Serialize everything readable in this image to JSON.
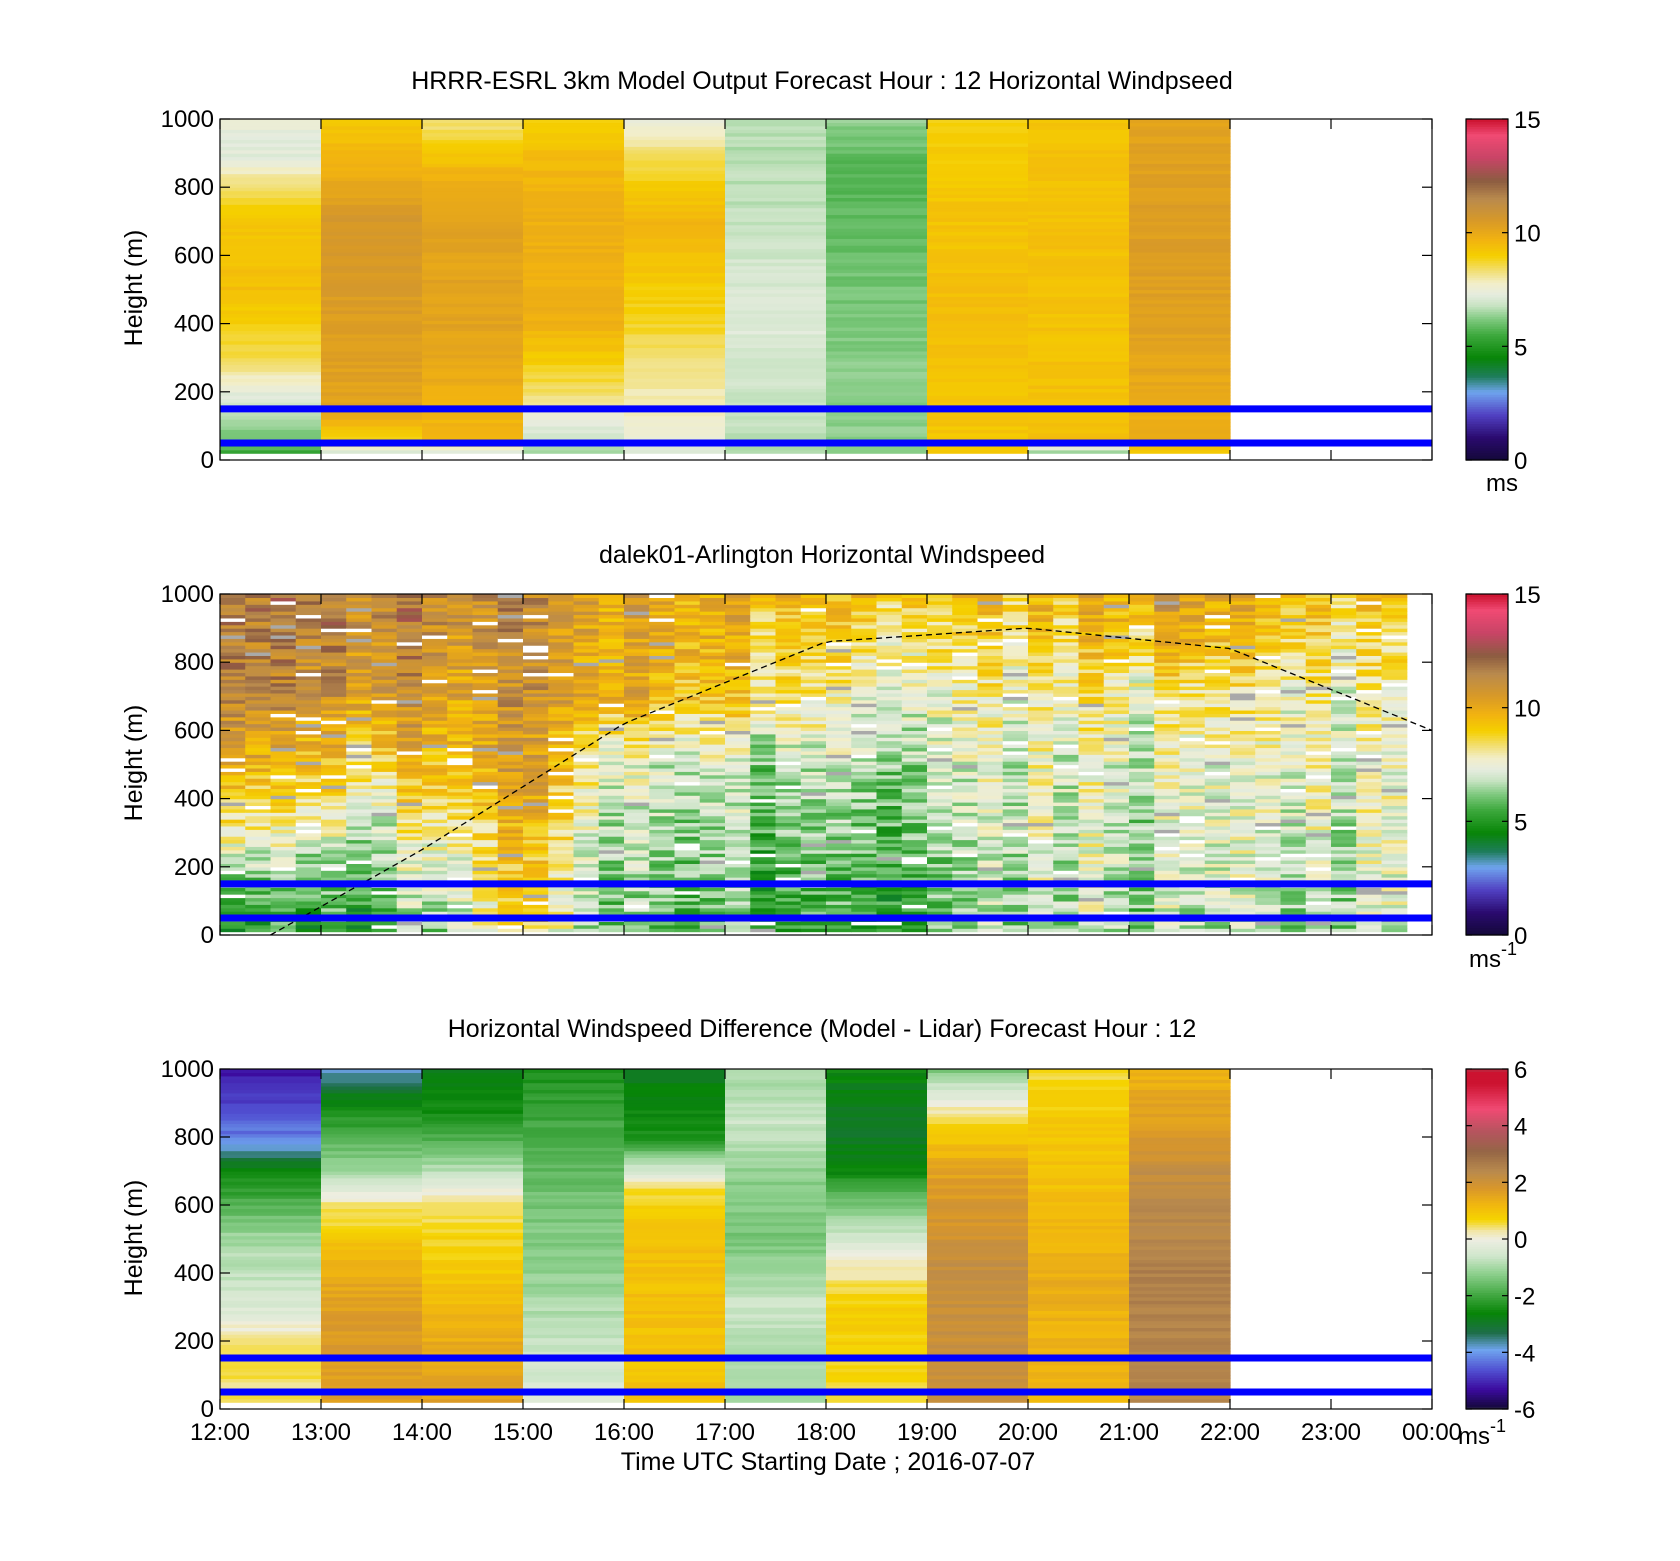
{
  "figure": {
    "xlabel": "Time UTC  Starting Date ; 2016-07-07",
    "x_tick_labels": [
      "12:00",
      "13:00",
      "14:00",
      "15:00",
      "16:00",
      "17:00",
      "18:00",
      "19:00",
      "20:00",
      "21:00",
      "22:00",
      "23:00",
      "00:00"
    ],
    "colors": {
      "reference_lines": "#0000ff",
      "boundary_layer_curve": "#000000",
      "axes": "#000000",
      "background": "#ffffff"
    }
  },
  "chart_data": [
    {
      "type": "heatmap",
      "title": "HRRR-ESRL 3km Model Output   Forecast Hour : 12 Horizontal Windpseed",
      "ylabel": "Height (m)",
      "ylim": [
        0,
        1000
      ],
      "y_ticks": [
        0,
        200,
        400,
        600,
        800,
        1000
      ],
      "xlim_hours_utc": [
        12,
        24
      ],
      "colorbar": {
        "range": [
          0,
          15
        ],
        "ticks": [
          0,
          5,
          10,
          15
        ],
        "unit": "ms"
      },
      "data_coverage_hours": [
        12,
        22
      ],
      "reference_lines_m": [
        150,
        50
      ],
      "columns_hourly_mean_speed_ms": [
        {
          "hour": "12:00",
          "speed_by_height": [
            [
              0,
              5.2
            ],
            [
              60,
              6.0
            ],
            [
              150,
              6.8
            ],
            [
              300,
              8.5
            ],
            [
              500,
              9.4
            ],
            [
              700,
              9.2
            ],
            [
              800,
              8.4
            ],
            [
              900,
              7.2
            ],
            [
              1000,
              7.4
            ]
          ]
        },
        {
          "hour": "13:00",
          "speed_by_height": [
            [
              0,
              5.5
            ],
            [
              60,
              9.0
            ],
            [
              150,
              10.2
            ],
            [
              400,
              10.4
            ],
            [
              700,
              10.6
            ],
            [
              850,
              9.8
            ],
            [
              1000,
              9.2
            ]
          ]
        },
        {
          "hour": "14:00",
          "speed_by_height": [
            [
              0,
              5.5
            ],
            [
              60,
              9.5
            ],
            [
              150,
              9.8
            ],
            [
              400,
              10.2
            ],
            [
              700,
              10.2
            ],
            [
              850,
              9.6
            ],
            [
              1000,
              8.2
            ]
          ]
        },
        {
          "hour": "15:00",
          "speed_by_height": [
            [
              0,
              6.2
            ],
            [
              100,
              7.2
            ],
            [
              200,
              8.4
            ],
            [
              400,
              9.8
            ],
            [
              700,
              9.8
            ],
            [
              850,
              9.6
            ],
            [
              1000,
              9.0
            ]
          ]
        },
        {
          "hour": "16:00",
          "speed_by_height": [
            [
              0,
              7.2
            ],
            [
              200,
              8.0
            ],
            [
              400,
              8.8
            ],
            [
              700,
              9.6
            ],
            [
              850,
              8.8
            ],
            [
              1000,
              7.4
            ]
          ]
        },
        {
          "hour": "17:00",
          "speed_by_height": [
            [
              0,
              6.6
            ],
            [
              400,
              7.2
            ],
            [
              700,
              6.8
            ],
            [
              1000,
              6.6
            ]
          ]
        },
        {
          "hour": "18:00",
          "speed_by_height": [
            [
              0,
              6.4
            ],
            [
              400,
              6.2
            ],
            [
              700,
              5.9
            ],
            [
              850,
              5.7
            ],
            [
              1000,
              6.4
            ]
          ]
        },
        {
          "hour": "19:00",
          "speed_by_height": [
            [
              0,
              9.2
            ],
            [
              400,
              9.4
            ],
            [
              700,
              9.3
            ],
            [
              1000,
              9.0
            ]
          ]
        },
        {
          "hour": "20:00",
          "speed_by_height": [
            [
              0,
              4.5
            ],
            [
              60,
              9.4
            ],
            [
              400,
              9.3
            ],
            [
              700,
              9.4
            ],
            [
              1000,
              9.3
            ]
          ]
        },
        {
          "hour": "21:00",
          "speed_by_height": [
            [
              0,
              9.0
            ],
            [
              60,
              9.8
            ],
            [
              400,
              10.3
            ],
            [
              700,
              10.4
            ],
            [
              1000,
              10.2
            ]
          ]
        }
      ]
    },
    {
      "type": "heatmap",
      "title": "dalek01-Arlington  Horizontal Windspeed",
      "ylabel": "Height (m)",
      "ylim": [
        0,
        1000
      ],
      "y_ticks": [
        0,
        200,
        400,
        600,
        800,
        1000
      ],
      "xlim_hours_utc": [
        12,
        24
      ],
      "colorbar": {
        "range": [
          0,
          15
        ],
        "ticks": [
          0,
          5,
          10,
          15
        ],
        "unit": "ms-1"
      },
      "data_coverage_hours": [
        12,
        23.75
      ],
      "reference_lines_m": [
        150,
        50
      ],
      "boundary_layer_height_curve": {
        "style": "dashed",
        "points_hour_height_m": [
          [
            12.5,
            0
          ],
          [
            14,
            250
          ],
          [
            16,
            620
          ],
          [
            18,
            860
          ],
          [
            20,
            900
          ],
          [
            22,
            840
          ],
          [
            24,
            600
          ]
        ]
      },
      "keyframes_mean_speed_ms": [
        {
          "hour": 12.0,
          "speed_by_height": [
            [
              0,
              5.0
            ],
            [
              150,
              6.2
            ],
            [
              300,
              8.2
            ],
            [
              500,
              10.2
            ],
            [
              700,
              11.4
            ],
            [
              1000,
              11.8
            ]
          ]
        },
        {
          "hour": 13.5,
          "speed_by_height": [
            [
              0,
              5.0
            ],
            [
              150,
              6.0
            ],
            [
              300,
              6.8
            ],
            [
              500,
              8.8
            ],
            [
              700,
              10.6
            ],
            [
              1000,
              11.6
            ]
          ]
        },
        {
          "hour": 15.0,
          "speed_by_height": [
            [
              0,
              8.2
            ],
            [
              150,
              8.6
            ],
            [
              300,
              9.2
            ],
            [
              500,
              10.2
            ],
            [
              700,
              10.4
            ],
            [
              1000,
              10.8
            ]
          ]
        },
        {
          "hour": 16.0,
          "speed_by_height": [
            [
              0,
              5.6
            ],
            [
              150,
              6.0
            ],
            [
              300,
              6.4
            ],
            [
              500,
              6.8
            ],
            [
              700,
              9.6
            ],
            [
              1000,
              9.8
            ]
          ]
        },
        {
          "hour": 17.5,
          "speed_by_height": [
            [
              0,
              5.4
            ],
            [
              150,
              5.8
            ],
            [
              300,
              6.2
            ],
            [
              500,
              6.8
            ],
            [
              700,
              8.6
            ],
            [
              1000,
              9.8
            ]
          ]
        },
        {
          "hour": 18.5,
          "speed_by_height": [
            [
              0,
              4.6
            ],
            [
              150,
              5.0
            ],
            [
              300,
              5.4
            ],
            [
              500,
              6.0
            ],
            [
              700,
              6.8
            ],
            [
              1000,
              8.6
            ]
          ]
        },
        {
          "hour": 20.0,
          "speed_by_height": [
            [
              0,
              6.6
            ],
            [
              150,
              7.0
            ],
            [
              300,
              7.2
            ],
            [
              500,
              7.4
            ],
            [
              700,
              7.8
            ],
            [
              1000,
              9.2
            ]
          ]
        },
        {
          "hour": 21.5,
          "speed_by_height": [
            [
              0,
              6.4
            ],
            [
              150,
              6.8
            ],
            [
              300,
              7.0
            ],
            [
              500,
              7.2
            ],
            [
              700,
              8.0
            ],
            [
              1000,
              10.6
            ]
          ]
        },
        {
          "hour": 23.0,
          "speed_by_height": [
            [
              0,
              6.6
            ],
            [
              150,
              7.0
            ],
            [
              300,
              7.2
            ],
            [
              500,
              7.4
            ],
            [
              700,
              7.8
            ],
            [
              1000,
              9.0
            ]
          ]
        }
      ]
    },
    {
      "type": "heatmap",
      "title": "Horizontal Windspeed Difference (Model - Lidar) Forecast Hour : 12",
      "ylabel": "Height (m)",
      "ylim": [
        0,
        1000
      ],
      "y_ticks": [
        0,
        200,
        400,
        600,
        800,
        1000
      ],
      "xlim_hours_utc": [
        12,
        24
      ],
      "colorbar": {
        "range": [
          -6,
          6
        ],
        "ticks": [
          -6,
          -4,
          -2,
          0,
          2,
          4,
          6
        ],
        "unit": "ms-1"
      },
      "data_coverage_hours": [
        12,
        22
      ],
      "reference_lines_m": [
        150,
        50
      ],
      "columns_hourly_mean_difference_ms": [
        {
          "hour": "12:00",
          "diff_by_height": [
            [
              0,
              0.5
            ],
            [
              200,
              0.4
            ],
            [
              300,
              -0.4
            ],
            [
              500,
              -1.0
            ],
            [
              700,
              -2.6
            ],
            [
              800,
              -4.2
            ],
            [
              900,
              -4.8
            ],
            [
              1000,
              -5.2
            ]
          ]
        },
        {
          "hour": "13:00",
          "diff_by_height": [
            [
              0,
              1.6
            ],
            [
              200,
              1.8
            ],
            [
              400,
              1.4
            ],
            [
              600,
              0.4
            ],
            [
              700,
              -1.0
            ],
            [
              900,
              -2.6
            ],
            [
              1000,
              -3.8
            ]
          ]
        },
        {
          "hour": "14:00",
          "diff_by_height": [
            [
              0,
              1.6
            ],
            [
              200,
              1.4
            ],
            [
              400,
              0.9
            ],
            [
              600,
              0.5
            ],
            [
              700,
              -0.8
            ],
            [
              850,
              -2.4
            ],
            [
              1000,
              -2.8
            ]
          ]
        },
        {
          "hour": "15:00",
          "diff_by_height": [
            [
              0,
              -0.4
            ],
            [
              200,
              -0.6
            ],
            [
              400,
              -1.2
            ],
            [
              600,
              -1.4
            ],
            [
              800,
              -1.9
            ],
            [
              1000,
              -2.4
            ]
          ]
        },
        {
          "hour": "16:00",
          "diff_by_height": [
            [
              0,
              1.0
            ],
            [
              200,
              1.0
            ],
            [
              500,
              1.1
            ],
            [
              650,
              0.6
            ],
            [
              800,
              -2.4
            ],
            [
              1000,
              -2.8
            ]
          ]
        },
        {
          "hour": "17:00",
          "diff_by_height": [
            [
              0,
              -1.2
            ],
            [
              300,
              -0.6
            ],
            [
              500,
              -1.4
            ],
            [
              700,
              -1.2
            ],
            [
              850,
              -0.6
            ],
            [
              1000,
              -1.0
            ]
          ]
        },
        {
          "hour": "18:00",
          "diff_by_height": [
            [
              0,
              0.6
            ],
            [
              300,
              0.8
            ],
            [
              450,
              0.0
            ],
            [
              600,
              -1.4
            ],
            [
              700,
              -2.6
            ],
            [
              850,
              -3.0
            ],
            [
              1000,
              -2.6
            ]
          ]
        },
        {
          "hour": "19:00",
          "diff_by_height": [
            [
              0,
              2.0
            ],
            [
              400,
              2.2
            ],
            [
              700,
              1.6
            ],
            [
              850,
              0.6
            ],
            [
              950,
              -0.6
            ],
            [
              1000,
              -1.4
            ]
          ]
        },
        {
          "hour": "20:00",
          "diff_by_height": [
            [
              0,
              1.2
            ],
            [
              400,
              1.4
            ],
            [
              700,
              1.0
            ],
            [
              900,
              0.8
            ],
            [
              1000,
              0.6
            ]
          ]
        },
        {
          "hour": "21:00",
          "diff_by_height": [
            [
              0,
              2.4
            ],
            [
              400,
              2.6
            ],
            [
              700,
              2.2
            ],
            [
              850,
              1.6
            ],
            [
              950,
              1.4
            ],
            [
              1000,
              1.2
            ]
          ]
        }
      ]
    }
  ]
}
